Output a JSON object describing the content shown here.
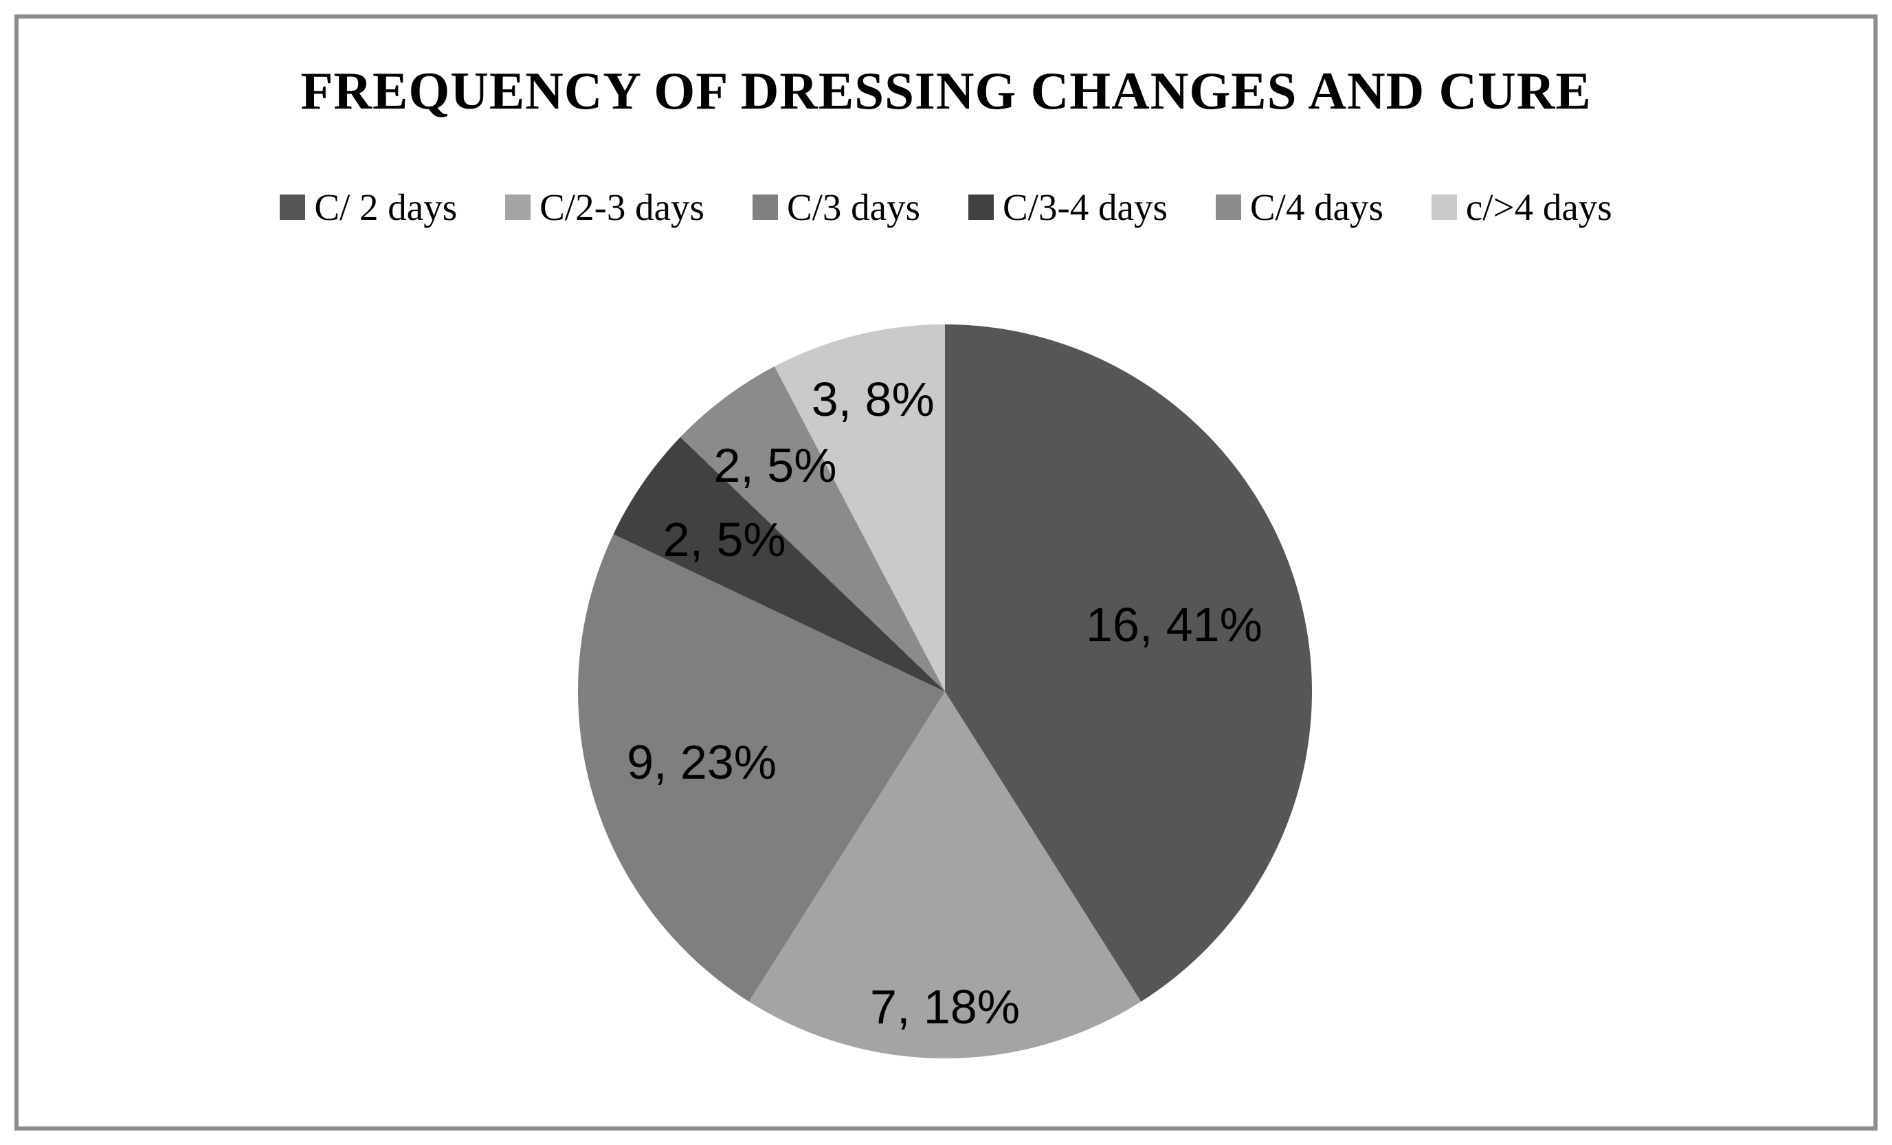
{
  "frame": {
    "border_color": "#8c8c8c",
    "background_color": "#ffffff"
  },
  "title": "FREQUENCY OF DRESSING CHANGES AND CURE",
  "chart_data": {
    "type": "pie",
    "title": "FREQUENCY OF DRESSING CHANGES AND CURE",
    "total": 39,
    "legend_position": "top",
    "start_angle_deg": 0,
    "direction": "clockwise",
    "label_format": "value, percent",
    "series": [
      {
        "name": "C/ 2 days",
        "value": 16,
        "pct": "41%",
        "label": "16, 41%",
        "color": "#565656",
        "label_radius_factor": 0.65
      },
      {
        "name": "C/2-3 days",
        "value": 7,
        "pct": "18%",
        "label": "7, 18%",
        "color": "#a4a4a4",
        "label_radius_factor": 0.86
      },
      {
        "name": "C/3 days",
        "value": 9,
        "pct": "23%",
        "label": "9, 23%",
        "color": "#7f7f7f",
        "label_radius_factor": 0.69
      },
      {
        "name": "C/3-4 days",
        "value": 2,
        "pct": "5%",
        "label": "2, 5%",
        "color": "#414141",
        "label_radius_factor": 0.73
      },
      {
        "name": "C/4 days",
        "value": 2,
        "pct": "5%",
        "label": "2, 5%",
        "color": "#8b8b8b",
        "label_radius_factor": 0.77
      },
      {
        "name": "c/>4 days",
        "value": 3,
        "pct": "8%",
        "label": "3, 8%",
        "color": "#cacaca",
        "label_radius_factor": 0.82
      }
    ]
  }
}
